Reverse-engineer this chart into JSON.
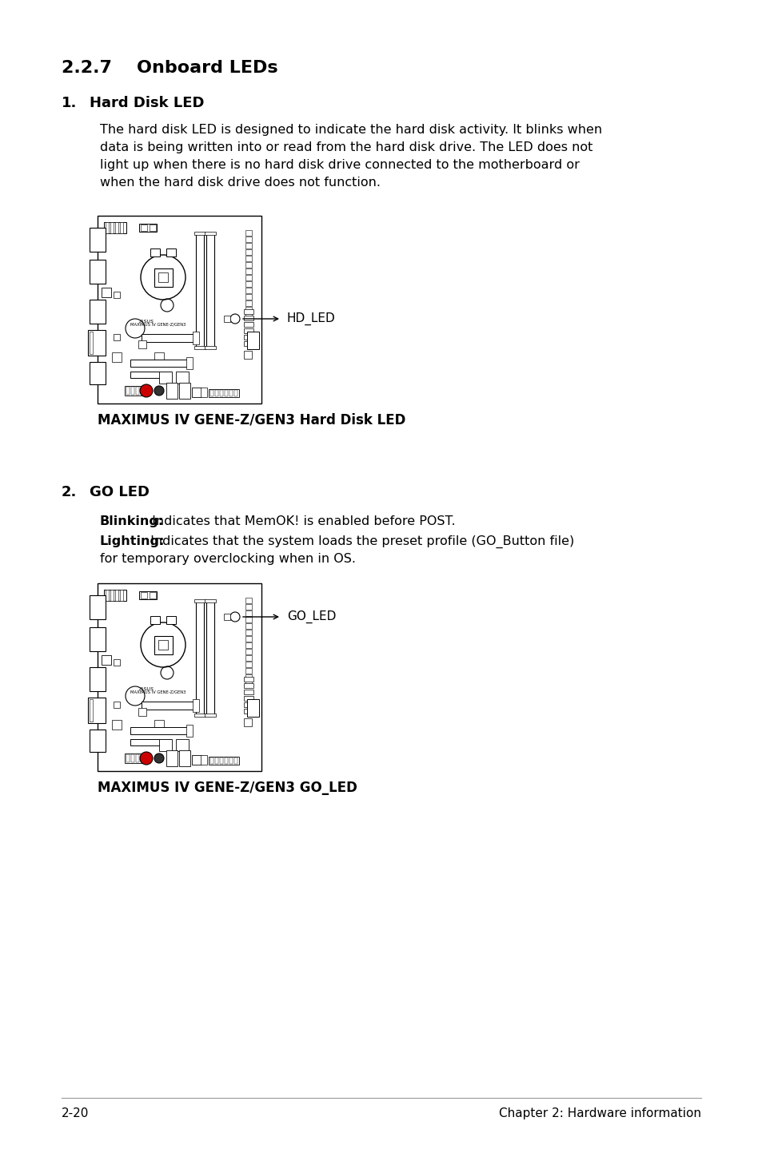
{
  "background_color": "#ffffff",
  "section_title": "2.2.7    Onboard LEDs",
  "item1_number": "1.",
  "item1_label": "Hard Disk LED",
  "item1_body_line1": "The hard disk LED is designed to indicate the hard disk activity. It blinks when",
  "item1_body_line2": "data is being written into or read from the hard disk drive. The LED does not",
  "item1_body_line3": "light up when there is no hard disk drive connected to the motherboard or",
  "item1_body_line4": "when the hard disk drive does not function.",
  "img1_caption": "MAXIMUS IV GENE-Z/GEN3 Hard Disk LED",
  "img1_arrow_label": "HD_LED",
  "item2_number": "2.",
  "item2_label": "GO LED",
  "item2_blinking_bold": "Blinking:",
  "item2_blinking_rest": " Indicates that MemOK! is enabled before POST.",
  "item2_lighting_bold": "Lighting:",
  "item2_lighting_rest": " Indicates that the system loads the preset profile (GO_Button file)",
  "item2_lighting_rest2": "for temporary overclocking when in OS.",
  "img2_caption": "MAXIMUS IV GENE-Z/GEN3 GO_LED",
  "img2_arrow_label": "GO_LED",
  "footer_left": "2-20",
  "footer_right": "Chapter 2: Hardware information"
}
